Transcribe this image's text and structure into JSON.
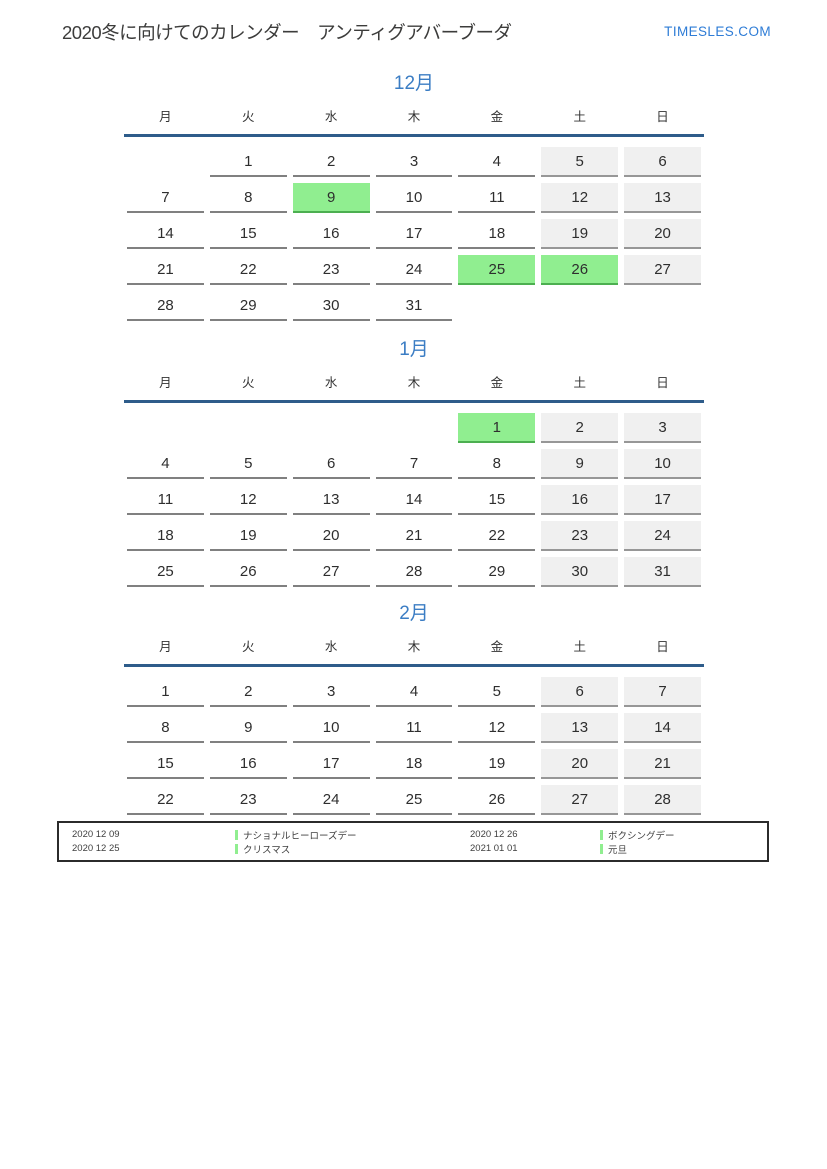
{
  "header": {
    "title": "2020冬に向けてのカレンダー　アンティグアバーブーダ",
    "site": "TIMESLES.COM"
  },
  "weekdays": [
    "月",
    "火",
    "水",
    "木",
    "金",
    "土",
    "日"
  ],
  "months": [
    {
      "label": "12月",
      "weeks": [
        [
          {
            "d": "",
            "t": "x"
          },
          {
            "d": "1",
            "t": "w"
          },
          {
            "d": "2",
            "t": "w"
          },
          {
            "d": "3",
            "t": "w"
          },
          {
            "d": "4",
            "t": "w"
          },
          {
            "d": "5",
            "t": "e"
          },
          {
            "d": "6",
            "t": "e"
          }
        ],
        [
          {
            "d": "7",
            "t": "w"
          },
          {
            "d": "8",
            "t": "w"
          },
          {
            "d": "9",
            "t": "h"
          },
          {
            "d": "10",
            "t": "w"
          },
          {
            "d": "11",
            "t": "w"
          },
          {
            "d": "12",
            "t": "e"
          },
          {
            "d": "13",
            "t": "e"
          }
        ],
        [
          {
            "d": "14",
            "t": "w"
          },
          {
            "d": "15",
            "t": "w"
          },
          {
            "d": "16",
            "t": "w"
          },
          {
            "d": "17",
            "t": "w"
          },
          {
            "d": "18",
            "t": "w"
          },
          {
            "d": "19",
            "t": "e"
          },
          {
            "d": "20",
            "t": "e"
          }
        ],
        [
          {
            "d": "21",
            "t": "w"
          },
          {
            "d": "22",
            "t": "w"
          },
          {
            "d": "23",
            "t": "w"
          },
          {
            "d": "24",
            "t": "w"
          },
          {
            "d": "25",
            "t": "h"
          },
          {
            "d": "26",
            "t": "h"
          },
          {
            "d": "27",
            "t": "e"
          }
        ],
        [
          {
            "d": "28",
            "t": "w"
          },
          {
            "d": "29",
            "t": "w"
          },
          {
            "d": "30",
            "t": "w"
          },
          {
            "d": "31",
            "t": "w"
          },
          {
            "d": "",
            "t": "x"
          },
          {
            "d": "",
            "t": "x"
          },
          {
            "d": "",
            "t": "x"
          }
        ]
      ]
    },
    {
      "label": "1月",
      "weeks": [
        [
          {
            "d": "",
            "t": "x"
          },
          {
            "d": "",
            "t": "x"
          },
          {
            "d": "",
            "t": "x"
          },
          {
            "d": "",
            "t": "x"
          },
          {
            "d": "1",
            "t": "h"
          },
          {
            "d": "2",
            "t": "e"
          },
          {
            "d": "3",
            "t": "e"
          }
        ],
        [
          {
            "d": "4",
            "t": "w"
          },
          {
            "d": "5",
            "t": "w"
          },
          {
            "d": "6",
            "t": "w"
          },
          {
            "d": "7",
            "t": "w"
          },
          {
            "d": "8",
            "t": "w"
          },
          {
            "d": "9",
            "t": "e"
          },
          {
            "d": "10",
            "t": "e"
          }
        ],
        [
          {
            "d": "11",
            "t": "w"
          },
          {
            "d": "12",
            "t": "w"
          },
          {
            "d": "13",
            "t": "w"
          },
          {
            "d": "14",
            "t": "w"
          },
          {
            "d": "15",
            "t": "w"
          },
          {
            "d": "16",
            "t": "e"
          },
          {
            "d": "17",
            "t": "e"
          }
        ],
        [
          {
            "d": "18",
            "t": "w"
          },
          {
            "d": "19",
            "t": "w"
          },
          {
            "d": "20",
            "t": "w"
          },
          {
            "d": "21",
            "t": "w"
          },
          {
            "d": "22",
            "t": "w"
          },
          {
            "d": "23",
            "t": "e"
          },
          {
            "d": "24",
            "t": "e"
          }
        ],
        [
          {
            "d": "25",
            "t": "w"
          },
          {
            "d": "26",
            "t": "w"
          },
          {
            "d": "27",
            "t": "w"
          },
          {
            "d": "28",
            "t": "w"
          },
          {
            "d": "29",
            "t": "w"
          },
          {
            "d": "30",
            "t": "e"
          },
          {
            "d": "31",
            "t": "e"
          }
        ]
      ]
    },
    {
      "label": "2月",
      "weeks": [
        [
          {
            "d": "1",
            "t": "w"
          },
          {
            "d": "2",
            "t": "w"
          },
          {
            "d": "3",
            "t": "w"
          },
          {
            "d": "4",
            "t": "w"
          },
          {
            "d": "5",
            "t": "w"
          },
          {
            "d": "6",
            "t": "e"
          },
          {
            "d": "7",
            "t": "e"
          }
        ],
        [
          {
            "d": "8",
            "t": "w"
          },
          {
            "d": "9",
            "t": "w"
          },
          {
            "d": "10",
            "t": "w"
          },
          {
            "d": "11",
            "t": "w"
          },
          {
            "d": "12",
            "t": "w"
          },
          {
            "d": "13",
            "t": "e"
          },
          {
            "d": "14",
            "t": "e"
          }
        ],
        [
          {
            "d": "15",
            "t": "w"
          },
          {
            "d": "16",
            "t": "w"
          },
          {
            "d": "17",
            "t": "w"
          },
          {
            "d": "18",
            "t": "w"
          },
          {
            "d": "19",
            "t": "w"
          },
          {
            "d": "20",
            "t": "e"
          },
          {
            "d": "21",
            "t": "e"
          }
        ],
        [
          {
            "d": "22",
            "t": "w"
          },
          {
            "d": "23",
            "t": "w"
          },
          {
            "d": "24",
            "t": "w"
          },
          {
            "d": "25",
            "t": "w"
          },
          {
            "d": "26",
            "t": "w"
          },
          {
            "d": "27",
            "t": "e"
          },
          {
            "d": "28",
            "t": "e"
          }
        ]
      ]
    }
  ],
  "legend": {
    "columns": [
      {
        "entries": [
          {
            "date": "2020 12 09",
            "label": "ナショナルヒーローズデー"
          },
          {
            "date": "2020 12 25",
            "label": "クリスマス"
          }
        ]
      },
      {
        "entries": [
          {
            "date": "2020 12 26",
            "label": "ボクシングデー"
          },
          {
            "date": "2021 01 01",
            "label": "元旦"
          }
        ]
      }
    ]
  },
  "colors": {
    "accent": "#3b7dc4",
    "header_line": "#2e5c8a",
    "holiday_bg": "#90ee90",
    "holiday_border": "#4caf50",
    "weekend_bg": "#f0f0f0",
    "weekday_border": "#808080",
    "site_link": "#2e7cd6",
    "text": "#333333"
  }
}
